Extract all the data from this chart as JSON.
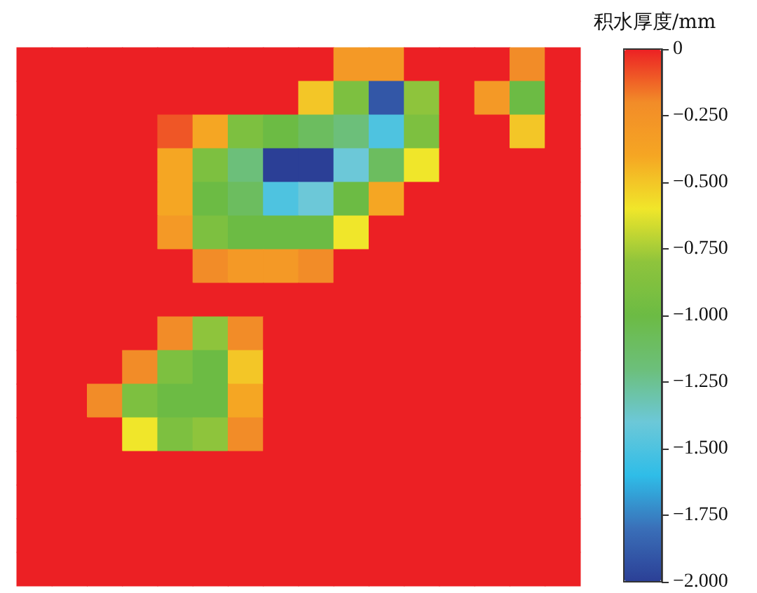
{
  "chart_data": {
    "type": "heatmap",
    "clabel": "积水厚度/mm",
    "categories": [
      null,
      null,
      null,
      null,
      null,
      null,
      null,
      null,
      null,
      null,
      null,
      null,
      null,
      null,
      null,
      null
    ],
    "y_categories": [
      null,
      null,
      null,
      null,
      null,
      null,
      null,
      null,
      null,
      null,
      null,
      null,
      null,
      null,
      null,
      null
    ],
    "cells": [
      [
        0,
        0,
        0,
        0,
        0,
        0,
        0,
        0,
        0,
        -0.3,
        -0.3,
        0,
        0,
        0,
        -0.2,
        0
      ],
      [
        0,
        0,
        0,
        0,
        0,
        0,
        0,
        0,
        -0.5,
        -0.9,
        -1.9,
        -0.8,
        0,
        -0.3,
        -1.0,
        0
      ],
      [
        0,
        0,
        0,
        0,
        -0.1,
        -0.4,
        -0.9,
        -1.0,
        -1.1,
        -1.2,
        -1.5,
        -0.9,
        0,
        0,
        -0.5,
        0
      ],
      [
        0,
        0,
        0,
        0,
        -0.4,
        -0.9,
        -1.2,
        -2.0,
        -2.0,
        -1.4,
        -1.1,
        -0.6,
        0,
        0,
        0,
        0
      ],
      [
        0,
        0,
        0,
        0,
        -0.4,
        -1.0,
        -1.1,
        -1.5,
        -1.4,
        -1.0,
        -0.4,
        0,
        0,
        0,
        0,
        0
      ],
      [
        0,
        0,
        0,
        0,
        -0.3,
        -0.9,
        -1.0,
        -1.0,
        -1.0,
        -0.6,
        0,
        0,
        0,
        0,
        0,
        0
      ],
      [
        0,
        0,
        0,
        0,
        0,
        -0.2,
        -0.3,
        -0.3,
        -0.2,
        0,
        0,
        0,
        0,
        0,
        0,
        0
      ],
      [
        0,
        0,
        0,
        0,
        0,
        0,
        0,
        0,
        0,
        0,
        0,
        0,
        0,
        0,
        0,
        0
      ],
      [
        0,
        0,
        0,
        0,
        -0.2,
        -0.8,
        -0.2,
        0,
        0,
        0,
        0,
        0,
        0,
        0,
        0,
        0
      ],
      [
        0,
        0,
        0,
        -0.2,
        -0.9,
        -1.0,
        -0.5,
        0,
        0,
        0,
        0,
        0,
        0,
        0,
        0,
        0
      ],
      [
        0,
        0,
        -0.2,
        -0.9,
        -1.0,
        -1.0,
        -0.4,
        0,
        0,
        0,
        0,
        0,
        0,
        0,
        0,
        0
      ],
      [
        0,
        0,
        0,
        -0.6,
        -0.9,
        -0.8,
        -0.2,
        0,
        0,
        0,
        0,
        0,
        0,
        0,
        0,
        0
      ],
      [
        0,
        0,
        0,
        0,
        0,
        0,
        0,
        0,
        0,
        0,
        0,
        0,
        0,
        0,
        0,
        0
      ],
      [
        0,
        0,
        0,
        0,
        0,
        0,
        0,
        0,
        0,
        0,
        0,
        0,
        0,
        0,
        0,
        0
      ],
      [
        0,
        0,
        0,
        0,
        0,
        0,
        0,
        0,
        0,
        0,
        0,
        0,
        0,
        0,
        0,
        0
      ],
      [
        0,
        0,
        0,
        0,
        0,
        0,
        0,
        0,
        0,
        0,
        0,
        0,
        0,
        0,
        0,
        0
      ]
    ],
    "clim": [
      -2,
      0
    ],
    "cticks": [
      {
        "value": 0,
        "label": "0"
      },
      {
        "value": -0.25,
        "label": "−0.250"
      },
      {
        "value": -0.5,
        "label": "−0.500"
      },
      {
        "value": -0.75,
        "label": "−0.750"
      },
      {
        "value": -1,
        "label": "−1.000"
      },
      {
        "value": -1.25,
        "label": "−1.250"
      },
      {
        "value": -1.5,
        "label": "−1.500"
      },
      {
        "value": -1.75,
        "label": "−1.750"
      },
      {
        "value": -2,
        "label": "−2.000"
      }
    ]
  }
}
